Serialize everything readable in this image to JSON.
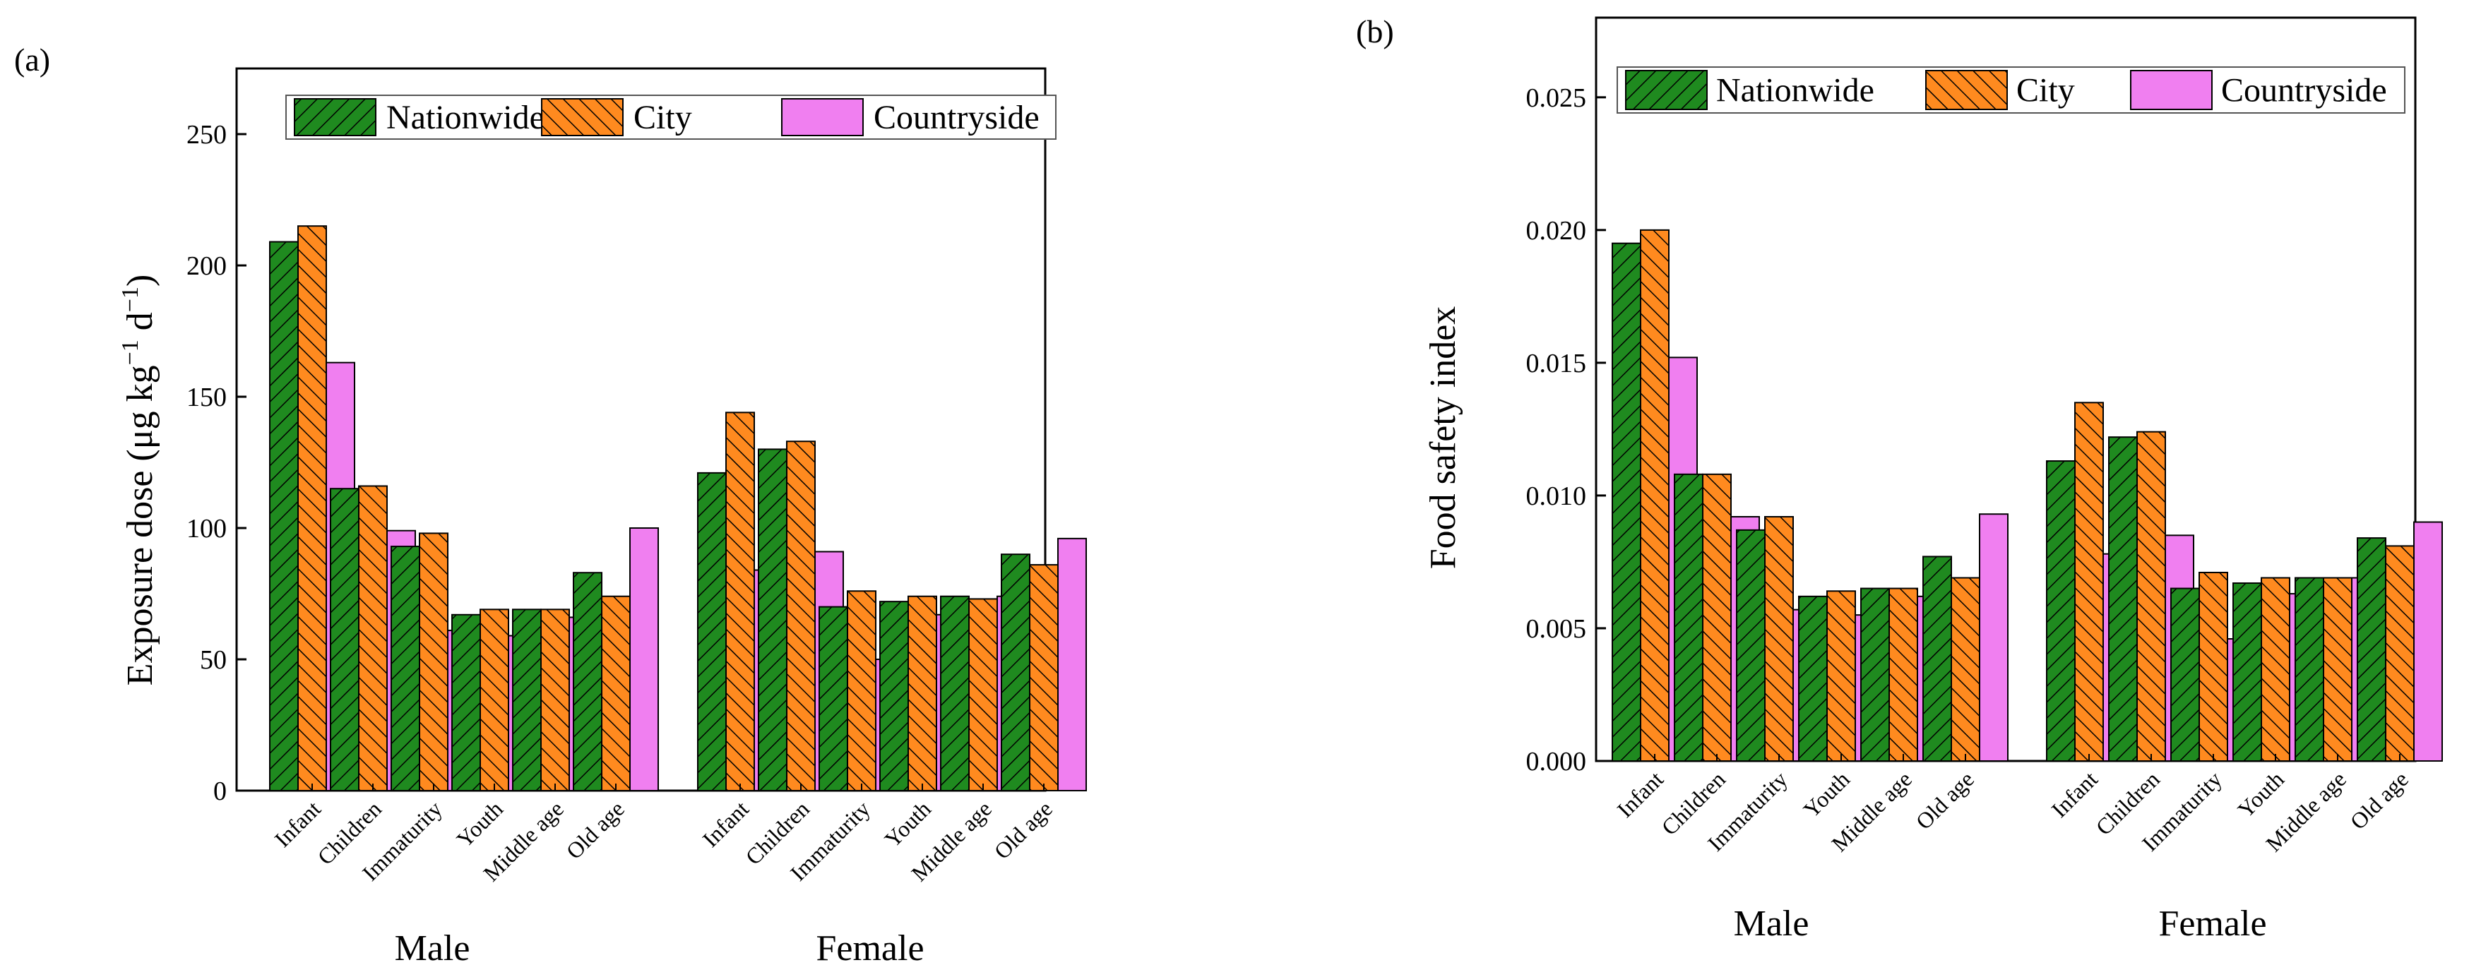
{
  "colors": {
    "Nationwide": "#1f8a1f",
    "City": "#ff8a1f",
    "Countryside": "#f07ff0"
  },
  "chart_data": [
    {
      "type": "bar",
      "panel_label": "(a)",
      "ylabel_main": "Exposure dose (μg kg",
      "ylabel_mid": " d",
      "ylabel_end": ")",
      "ylabel_sup": "−1",
      "ylim": [
        0,
        275
      ],
      "yticks": [
        0,
        50,
        100,
        150,
        200,
        250
      ],
      "ytick_labels": [
        "0",
        "50",
        "100",
        "150",
        "200",
        "250"
      ],
      "legend_position": "top",
      "groups": [
        "Male",
        "Female"
      ],
      "categories": [
        "Infant",
        "Children",
        "Immaturity",
        "Youth",
        "Middle age",
        "Old age"
      ],
      "series": [
        {
          "name": "Nationwide",
          "male": [
            209,
            115,
            93,
            67,
            69,
            83
          ],
          "female": [
            121,
            130,
            70,
            72,
            74,
            90
          ]
        },
        {
          "name": "City",
          "male": [
            215,
            116,
            98,
            69,
            69,
            74
          ],
          "female": [
            144,
            133,
            76,
            74,
            73,
            86
          ]
        },
        {
          "name": "Countryside",
          "male": [
            163,
            99,
            61,
            59,
            66,
            100
          ],
          "female": [
            84,
            91,
            50,
            67,
            74,
            96
          ]
        }
      ]
    },
    {
      "type": "bar",
      "panel_label": "(b)",
      "ylabel_main": "Food safety index",
      "ylim": [
        0,
        0.028
      ],
      "yticks": [
        0,
        0.005,
        0.01,
        0.015,
        0.02,
        0.025
      ],
      "ytick_labels": [
        "0.000",
        "0.005",
        "0.010",
        "0.015",
        "0.020",
        "0.025"
      ],
      "legend_position": "top",
      "groups": [
        "Male",
        "Female"
      ],
      "categories": [
        "Infant",
        "Children",
        "Immaturity",
        "Youth",
        "Middle age",
        "Old age"
      ],
      "series": [
        {
          "name": "Nationwide",
          "male": [
            0.0195,
            0.0108,
            0.0087,
            0.0062,
            0.0065,
            0.0077
          ],
          "female": [
            0.0113,
            0.0122,
            0.0065,
            0.0067,
            0.0069,
            0.0084
          ]
        },
        {
          "name": "City",
          "male": [
            0.02,
            0.0108,
            0.0092,
            0.0064,
            0.0065,
            0.0069
          ],
          "female": [
            0.0135,
            0.0124,
            0.0071,
            0.0069,
            0.0069,
            0.0081
          ]
        },
        {
          "name": "Countryside",
          "male": [
            0.0152,
            0.0092,
            0.0057,
            0.0055,
            0.0062,
            0.0093
          ],
          "female": [
            0.0078,
            0.0085,
            0.0046,
            0.0063,
            0.0069,
            0.009
          ]
        }
      ]
    }
  ]
}
